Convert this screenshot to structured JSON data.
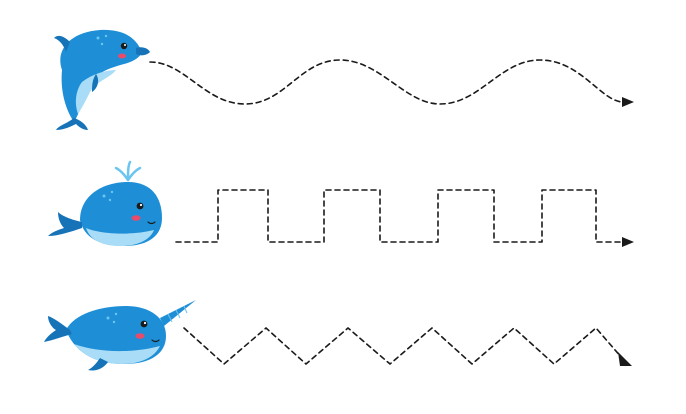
{
  "worksheet": {
    "rows": [
      {
        "animal": "dolphin",
        "path_shape": "wave"
      },
      {
        "animal": "whale",
        "path_shape": "square-wave"
      },
      {
        "animal": "narwhal",
        "path_shape": "zigzag"
      }
    ],
    "colors": {
      "body_blue": "#1e8fd6",
      "body_dark": "#1673b8",
      "belly_light": "#a9dcf7",
      "water_spout": "#6cc4f0",
      "cheek": "#e94b6a",
      "eye": "#1a1a1a",
      "trace_line": "#1a1a1a",
      "horn": "#1e8fd6"
    },
    "icons": [
      "dolphin-icon",
      "whale-icon",
      "narwhal-icon",
      "arrow-head-icon"
    ]
  }
}
